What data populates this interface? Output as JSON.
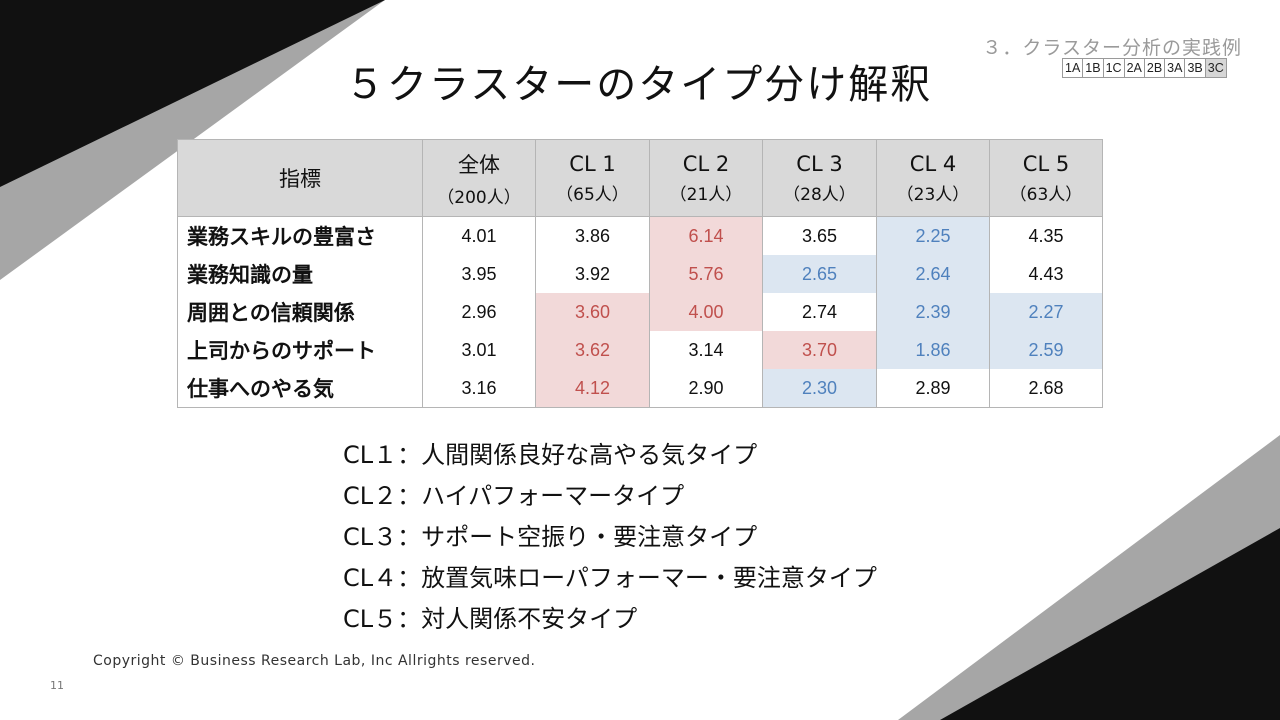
{
  "header": {
    "section_title": "３．クラスター分析の実践例",
    "nav": [
      "1A",
      "1B",
      "1C",
      "2A",
      "2B",
      "3A",
      "3B",
      "3C"
    ],
    "title": "５クラスターのタイプ分け解釈"
  },
  "table": {
    "header_label": "指標",
    "columns": [
      {
        "name": "全体",
        "count": "（200人）"
      },
      {
        "name": "CL 1",
        "count": "（65人）"
      },
      {
        "name": "CL 2",
        "count": "（21人）"
      },
      {
        "name": "CL 3",
        "count": "（28人）"
      },
      {
        "name": "CL 4",
        "count": "（23人）"
      },
      {
        "name": "CL 5",
        "count": "（63人）"
      }
    ],
    "rows": [
      {
        "label": "業務スキルの豊富さ",
        "values": [
          "4.01",
          "3.86",
          "6.14",
          "3.65",
          "2.25",
          "4.35"
        ],
        "marks": [
          "",
          "",
          "high",
          "",
          "low",
          ""
        ]
      },
      {
        "label": "業務知識の量",
        "values": [
          "3.95",
          "3.92",
          "5.76",
          "2.65",
          "2.64",
          "4.43"
        ],
        "marks": [
          "",
          "",
          "high",
          "low",
          "low",
          ""
        ]
      },
      {
        "label": "周囲との信頼関係",
        "values": [
          "2.96",
          "3.60",
          "4.00",
          "2.74",
          "2.39",
          "2.27"
        ],
        "marks": [
          "",
          "high",
          "high",
          "",
          "low",
          "low"
        ]
      },
      {
        "label": "上司からのサポート",
        "values": [
          "3.01",
          "3.62",
          "3.14",
          "3.70",
          "1.86",
          "2.59"
        ],
        "marks": [
          "",
          "high",
          "",
          "high",
          "low",
          "low"
        ]
      },
      {
        "label": "仕事へのやる気",
        "values": [
          "3.16",
          "4.12",
          "2.90",
          "2.30",
          "2.89",
          "2.68"
        ],
        "marks": [
          "",
          "high",
          "",
          "low",
          "",
          ""
        ]
      }
    ],
    "colors": {
      "high_bg": "#f2d9d9",
      "high_text": "#c0504d",
      "low_bg": "#dce6f1",
      "low_text": "#4f81bd",
      "header_bg": "#d9d9d9"
    }
  },
  "types": [
    "CL１：人間関係良好な高やる気タイプ",
    "CL２：ハイパフォーマータイプ",
    "CL３：サポート空振り・要注意タイプ",
    "CL４：放置気味ローパフォーマー・要注意タイプ",
    "CL５：対人関係不安タイプ"
  ],
  "footer": {
    "copyright": "Copyright © Business Research Lab, Inc Allrights reserved.",
    "page_number": "11"
  }
}
